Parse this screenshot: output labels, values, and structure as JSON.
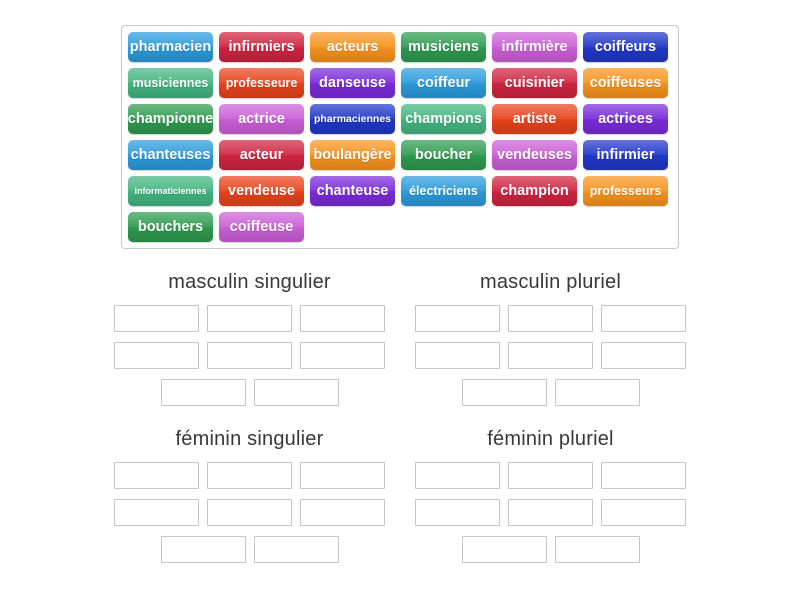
{
  "palette": {
    "lightblue": "#2b9bdc",
    "crimson": "#cf2440",
    "orange": "#f7941e",
    "forest": "#2e9b4f",
    "orchid": "#cb5fd6",
    "royal": "#2137c8",
    "seagreen": "#43b581",
    "vermillion": "#e8431c",
    "blueviolet": "#7a2bd9"
  },
  "word_bank": {
    "tiles": [
      {
        "label": "pharmacien",
        "color": "lightblue"
      },
      {
        "label": "infirmiers",
        "color": "crimson"
      },
      {
        "label": "acteurs",
        "color": "orange"
      },
      {
        "label": "musiciens",
        "color": "forest"
      },
      {
        "label": "infirmière",
        "color": "orchid"
      },
      {
        "label": "coiffeurs",
        "color": "royal"
      },
      {
        "label": "musiciennes",
        "color": "seagreen"
      },
      {
        "label": "professeure",
        "color": "vermillion"
      },
      {
        "label": "danseuse",
        "color": "blueviolet"
      },
      {
        "label": "coiffeur",
        "color": "lightblue"
      },
      {
        "label": "cuisinier",
        "color": "crimson"
      },
      {
        "label": "coiffeuses",
        "color": "orange"
      },
      {
        "label": "championne",
        "color": "forest"
      },
      {
        "label": "actrice",
        "color": "orchid"
      },
      {
        "label": "pharmaciennes",
        "color": "royal"
      },
      {
        "label": "champions",
        "color": "seagreen"
      },
      {
        "label": "artiste",
        "color": "vermillion"
      },
      {
        "label": "actrices",
        "color": "blueviolet"
      },
      {
        "label": "chanteuses",
        "color": "lightblue"
      },
      {
        "label": "acteur",
        "color": "crimson"
      },
      {
        "label": "boulangère",
        "color": "orange"
      },
      {
        "label": "boucher",
        "color": "forest"
      },
      {
        "label": "vendeuses",
        "color": "orchid"
      },
      {
        "label": "infirmier",
        "color": "royal"
      },
      {
        "label": "informaticiennes",
        "color": "seagreen"
      },
      {
        "label": "vendeuse",
        "color": "vermillion"
      },
      {
        "label": "chanteuse",
        "color": "blueviolet"
      },
      {
        "label": "électriciens",
        "color": "lightblue"
      },
      {
        "label": "champion",
        "color": "crimson"
      },
      {
        "label": "professeurs",
        "color": "orange"
      },
      {
        "label": "bouchers",
        "color": "forest"
      },
      {
        "label": "coiffeuse",
        "color": "orchid"
      }
    ]
  },
  "groups": [
    {
      "label": "masculin singulier",
      "slot_count": 8,
      "row_layout": [
        3,
        3,
        2
      ]
    },
    {
      "label": "masculin pluriel",
      "slot_count": 8,
      "row_layout": [
        3,
        3,
        2
      ]
    },
    {
      "label": "féminin singulier",
      "slot_count": 8,
      "row_layout": [
        3,
        3,
        2
      ]
    },
    {
      "label": "féminin pluriel",
      "slot_count": 8,
      "row_layout": [
        3,
        3,
        2
      ]
    }
  ]
}
